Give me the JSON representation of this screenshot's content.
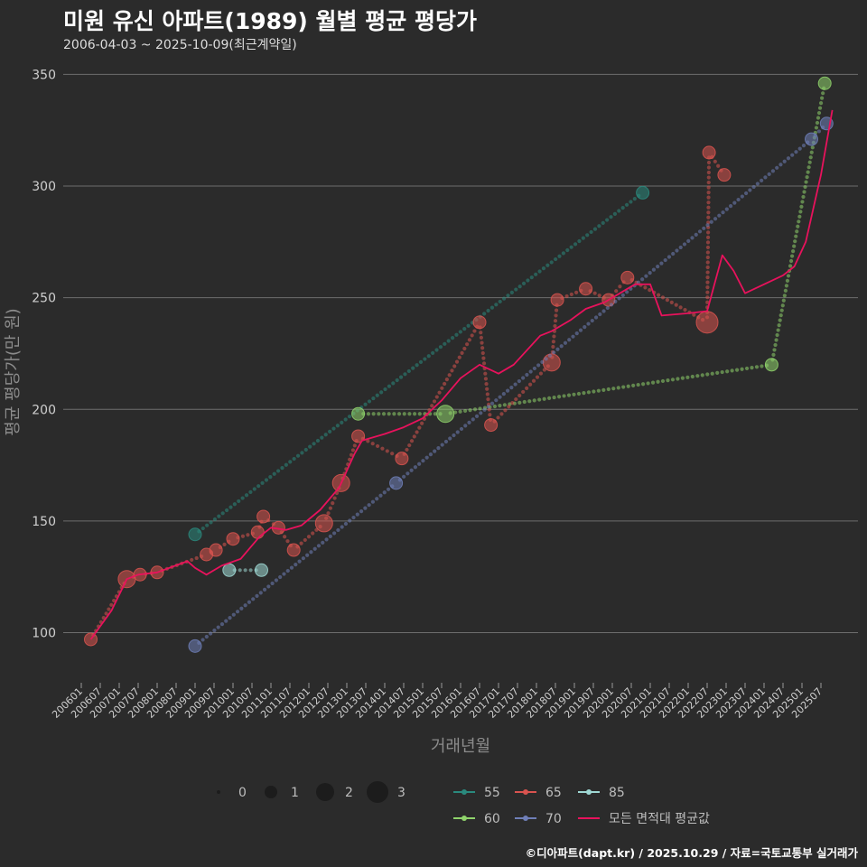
{
  "title": "미원 유신 아파트(1989) 월별 평균 평당가",
  "subtitle": "2006-04-03 ~ 2025-10-09(최근계약일)",
  "credit": "©디아파트(dapt.kr) / 2025.10.29 / 자료=국토교통부 실거래가",
  "colors": {
    "background": "#2b2b2b",
    "grid": "#6e6e6e",
    "s55": "#2a8a7e",
    "s60": "#8fd36b",
    "s65": "#d9534f",
    "s70": "#6f7fb8",
    "s85": "#9fd8d4",
    "avg": "#e8125c"
  },
  "chart_data": {
    "type": "line",
    "xlabel": "거래년월",
    "ylabel": "평균 평당가(만 원)",
    "ylim": [
      80,
      355
    ],
    "yticks": [
      100,
      150,
      200,
      250,
      300,
      350
    ],
    "xlim": [
      2006.0,
      2026.0
    ],
    "xticks": [
      "200601",
      "200607",
      "200701",
      "200707",
      "200801",
      "200807",
      "200901",
      "200907",
      "201001",
      "201007",
      "201101",
      "201107",
      "201201",
      "201207",
      "201301",
      "201307",
      "201401",
      "201407",
      "201501",
      "201507",
      "201601",
      "201607",
      "201701",
      "201707",
      "201801",
      "201807",
      "201901",
      "201907",
      "202001",
      "202007",
      "202101",
      "202107",
      "202201",
      "202207",
      "202301",
      "202307",
      "202401",
      "202407",
      "202501",
      "202507"
    ],
    "size_legend": {
      "labels": [
        "0",
        "1",
        "2",
        "3"
      ]
    },
    "series": [
      {
        "name": "55",
        "color": "#2a8a7e",
        "points": [
          [
            2009.0,
            144,
            1
          ],
          [
            2020.8,
            297,
            1
          ]
        ]
      },
      {
        "name": "60",
        "color": "#8fd36b",
        "points": [
          [
            2013.3,
            198,
            1
          ],
          [
            2015.6,
            198,
            2
          ],
          [
            2024.2,
            220,
            1
          ],
          [
            2025.6,
            346,
            1
          ]
        ]
      },
      {
        "name": "65",
        "color": "#d9534f",
        "points": [
          [
            2006.25,
            97,
            1
          ],
          [
            2007.2,
            124,
            2
          ],
          [
            2007.55,
            126,
            1
          ],
          [
            2008.0,
            127,
            1
          ],
          [
            2009.3,
            135,
            1
          ],
          [
            2009.55,
            137,
            1
          ],
          [
            2010.0,
            142,
            1
          ],
          [
            2010.65,
            145,
            1
          ],
          [
            2010.8,
            152,
            1
          ],
          [
            2011.2,
            147,
            1
          ],
          [
            2011.6,
            137,
            1
          ],
          [
            2012.4,
            149,
            2
          ],
          [
            2012.85,
            167,
            2
          ],
          [
            2013.3,
            188,
            1
          ],
          [
            2014.45,
            178,
            1
          ],
          [
            2016.5,
            239,
            1
          ],
          [
            2016.8,
            193,
            1
          ],
          [
            2018.4,
            221,
            2
          ],
          [
            2018.55,
            249,
            1
          ],
          [
            2019.3,
            254,
            1
          ],
          [
            2019.9,
            249,
            1
          ],
          [
            2020.4,
            259,
            1
          ],
          [
            2022.5,
            239,
            3
          ],
          [
            2022.55,
            315,
            1
          ],
          [
            2022.95,
            305,
            1
          ]
        ]
      },
      {
        "name": "70",
        "color": "#6f7fb8",
        "points": [
          [
            2009.0,
            94,
            1
          ],
          [
            2014.3,
            167,
            1
          ],
          [
            2025.25,
            321,
            1
          ],
          [
            2025.65,
            328,
            1
          ]
        ]
      },
      {
        "name": "85",
        "color": "#9fd8d4",
        "points": [
          [
            2009.9,
            128,
            1
          ],
          [
            2010.75,
            128,
            1
          ]
        ]
      },
      {
        "name": "모든 면적대 평균값",
        "color": "#e8125c",
        "points": [
          [
            2006.25,
            97
          ],
          [
            2006.8,
            110
          ],
          [
            2007.2,
            124
          ],
          [
            2007.5,
            126
          ],
          [
            2008.0,
            127
          ],
          [
            2008.8,
            132
          ],
          [
            2009.0,
            129
          ],
          [
            2009.3,
            126
          ],
          [
            2009.7,
            130
          ],
          [
            2010.2,
            133
          ],
          [
            2010.7,
            143
          ],
          [
            2011.0,
            147
          ],
          [
            2011.4,
            146
          ],
          [
            2011.8,
            148
          ],
          [
            2012.3,
            155
          ],
          [
            2012.8,
            165
          ],
          [
            2013.2,
            180
          ],
          [
            2013.4,
            186
          ],
          [
            2014.0,
            189
          ],
          [
            2014.5,
            192
          ],
          [
            2015.0,
            196
          ],
          [
            2015.5,
            204
          ],
          [
            2016.0,
            214
          ],
          [
            2016.5,
            220
          ],
          [
            2017.0,
            216
          ],
          [
            2017.4,
            220
          ],
          [
            2018.1,
            233
          ],
          [
            2018.4,
            235
          ],
          [
            2018.9,
            240
          ],
          [
            2019.3,
            245
          ],
          [
            2019.8,
            248
          ],
          [
            2020.3,
            253
          ],
          [
            2020.6,
            256
          ],
          [
            2021.0,
            256
          ],
          [
            2021.3,
            242
          ],
          [
            2022.0,
            243
          ],
          [
            2022.5,
            244
          ],
          [
            2022.9,
            269
          ],
          [
            2023.2,
            262
          ],
          [
            2023.5,
            252
          ],
          [
            2024.0,
            256
          ],
          [
            2024.5,
            260
          ],
          [
            2024.8,
            264
          ],
          [
            2025.1,
            275
          ],
          [
            2025.5,
            305
          ],
          [
            2025.8,
            334
          ]
        ]
      }
    ]
  }
}
